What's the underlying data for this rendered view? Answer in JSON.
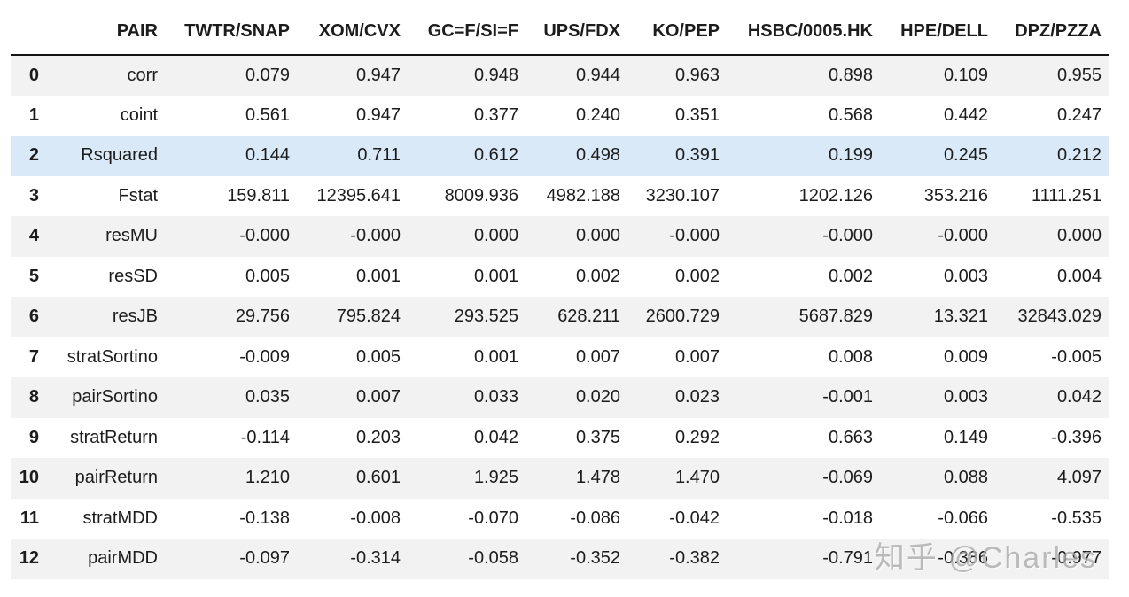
{
  "table": {
    "index_header": "",
    "columns": [
      "PAIR",
      "TWTR/SNAP",
      "XOM/CVX",
      "GC=F/SI=F",
      "UPS/FDX",
      "KO/PEP",
      "HSBC/0005.HK",
      "HPE/DELL",
      "DPZ/PZZA"
    ],
    "rows": [
      {
        "index": "0",
        "metric": "corr",
        "highlight": false,
        "values": [
          "0.079",
          "0.947",
          "0.948",
          "0.944",
          "0.963",
          "0.898",
          "0.109",
          "0.955"
        ]
      },
      {
        "index": "1",
        "metric": "coint",
        "highlight": false,
        "values": [
          "0.561",
          "0.947",
          "0.377",
          "0.240",
          "0.351",
          "0.568",
          "0.442",
          "0.247"
        ]
      },
      {
        "index": "2",
        "metric": "Rsquared",
        "highlight": true,
        "values": [
          "0.144",
          "0.711",
          "0.612",
          "0.498",
          "0.391",
          "0.199",
          "0.245",
          "0.212"
        ]
      },
      {
        "index": "3",
        "metric": "Fstat",
        "highlight": false,
        "values": [
          "159.811",
          "12395.641",
          "8009.936",
          "4982.188",
          "3230.107",
          "1202.126",
          "353.216",
          "1111.251"
        ]
      },
      {
        "index": "4",
        "metric": "resMU",
        "highlight": false,
        "values": [
          "-0.000",
          "-0.000",
          "0.000",
          "0.000",
          "-0.000",
          "-0.000",
          "-0.000",
          "0.000"
        ]
      },
      {
        "index": "5",
        "metric": "resSD",
        "highlight": false,
        "values": [
          "0.005",
          "0.001",
          "0.001",
          "0.002",
          "0.002",
          "0.002",
          "0.003",
          "0.004"
        ]
      },
      {
        "index": "6",
        "metric": "resJB",
        "highlight": false,
        "values": [
          "29.756",
          "795.824",
          "293.525",
          "628.211",
          "2600.729",
          "5687.829",
          "13.321",
          "32843.029"
        ]
      },
      {
        "index": "7",
        "metric": "stratSortino",
        "highlight": false,
        "values": [
          "-0.009",
          "0.005",
          "0.001",
          "0.007",
          "0.007",
          "0.008",
          "0.009",
          "-0.005"
        ]
      },
      {
        "index": "8",
        "metric": "pairSortino",
        "highlight": false,
        "values": [
          "0.035",
          "0.007",
          "0.033",
          "0.020",
          "0.023",
          "-0.001",
          "0.003",
          "0.042"
        ]
      },
      {
        "index": "9",
        "metric": "stratReturn",
        "highlight": false,
        "values": [
          "-0.114",
          "0.203",
          "0.042",
          "0.375",
          "0.292",
          "0.663",
          "0.149",
          "-0.396"
        ]
      },
      {
        "index": "10",
        "metric": "pairReturn",
        "highlight": false,
        "values": [
          "1.210",
          "0.601",
          "1.925",
          "1.478",
          "1.470",
          "-0.069",
          "0.088",
          "4.097"
        ]
      },
      {
        "index": "11",
        "metric": "stratMDD",
        "highlight": false,
        "values": [
          "-0.138",
          "-0.008",
          "-0.070",
          "-0.086",
          "-0.042",
          "-0.018",
          "-0.066",
          "-0.535"
        ]
      },
      {
        "index": "12",
        "metric": "pairMDD",
        "highlight": false,
        "values": [
          "-0.097",
          "-0.314",
          "-0.058",
          "-0.352",
          "-0.382",
          "-0.791",
          "-0.386",
          "-0.977"
        ]
      }
    ]
  },
  "watermark": {
    "text": "知乎 @Charles"
  },
  "colors": {
    "stripe_row": "#f2f2f2",
    "highlight_row": "#d9e9f8",
    "header_border": "#131313",
    "text": "#1c1c1c",
    "watermark": "#a8a8a8"
  }
}
